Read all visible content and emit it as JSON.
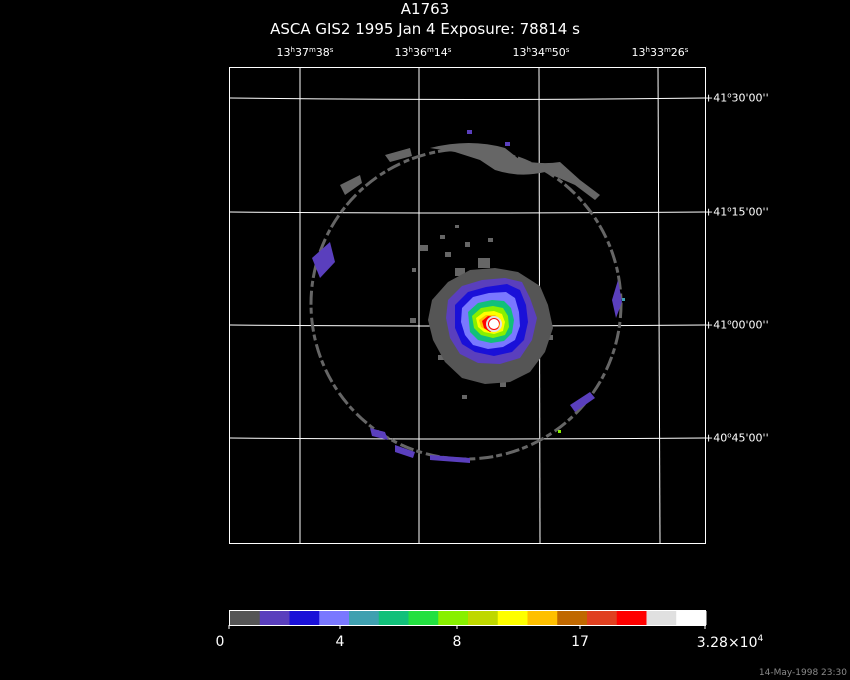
{
  "title": "A1763",
  "subtitle": "ASCA GIS2    1995 Jan  4     Exposure: 78814 s",
  "ra_ticks": [
    {
      "h": "13",
      "m": "37",
      "s": "38"
    },
    {
      "h": "13",
      "m": "36",
      "s": "14"
    },
    {
      "h": "13",
      "m": "34",
      "s": "50"
    },
    {
      "h": "13",
      "m": "33",
      "s": "26"
    }
  ],
  "dec_ticks": [
    {
      "sign": "+",
      "deg": "41",
      "min": "30",
      "sec": "00"
    },
    {
      "sign": "+",
      "deg": "41",
      "min": "15",
      "sec": "00"
    },
    {
      "sign": "+",
      "deg": "41",
      "min": "00",
      "sec": "00"
    },
    {
      "sign": "+",
      "deg": "40",
      "min": "45",
      "sec": "00"
    }
  ],
  "colorbar": {
    "colors": [
      "#555555",
      "#5a3fbd",
      "#1a10d8",
      "#7a78ff",
      "#3fa0b0",
      "#11c07a",
      "#22e040",
      "#88f000",
      "#bfd800",
      "#ffff00",
      "#ffc000",
      "#c06800",
      "#e04020",
      "#ff0000",
      "#e0e0e0",
      "#ffffff"
    ],
    "labels": [
      {
        "text": "0"
      },
      {
        "text": "4"
      },
      {
        "text": "8"
      },
      {
        "text": "17"
      },
      {
        "text": "3.28×10",
        "sup": "4"
      }
    ]
  },
  "colors": {
    "background": "#000000",
    "grid": "#ffffff",
    "ring": "#666666",
    "text": "#ffffff"
  },
  "timestamp": "14-May-1998 23:30"
}
